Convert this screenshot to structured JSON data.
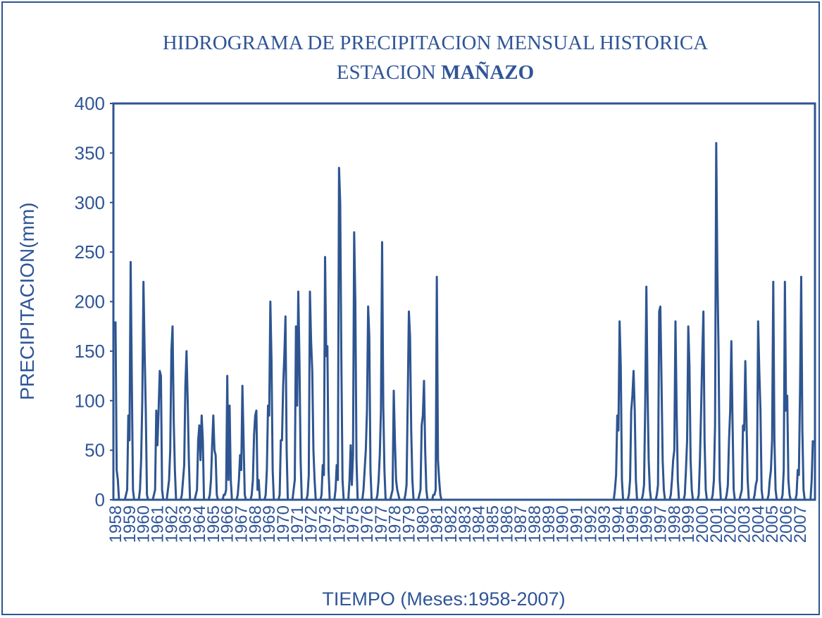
{
  "chart_data": {
    "type": "line",
    "title": "HIDROGRAMA DE PRECIPITACION MENSUAL HISTORICA",
    "subtitle": {
      "text": "ESTACION",
      "emphasis": "MAÑAZO"
    },
    "y_label": "PRECIPITACION(mm)",
    "x_label": "TIEMPO (Meses:1958-2007)",
    "ylim": [
      0,
      400
    ],
    "yticks": [
      0,
      50,
      100,
      150,
      200,
      250,
      300,
      350,
      400
    ],
    "grid": false,
    "color": "#2e5591",
    "categories": [
      "1958",
      null,
      null,
      null,
      null,
      null,
      null,
      null,
      null,
      null,
      null,
      null,
      "1959",
      null,
      null,
      null,
      null,
      null,
      null,
      null,
      null,
      null,
      null,
      null,
      "1960",
      null,
      null,
      null,
      null,
      null,
      null,
      null,
      null,
      null,
      null,
      null,
      "1961",
      null,
      null,
      null,
      null,
      null,
      null,
      null,
      null,
      null,
      null,
      null,
      "1962",
      null,
      null,
      null,
      null,
      null,
      null,
      null,
      null,
      null,
      null,
      null,
      "1963",
      null,
      null,
      null,
      null,
      null,
      null,
      null,
      null,
      null,
      null,
      null,
      "1964",
      null,
      null,
      null,
      null,
      null,
      null,
      null,
      null,
      null,
      null,
      null,
      "1965",
      null,
      null,
      null,
      null,
      null,
      null,
      null,
      null,
      null,
      null,
      null,
      "1966",
      null,
      null,
      null,
      null,
      null,
      null,
      null,
      null,
      null,
      null,
      null,
      "1967",
      null,
      null,
      null,
      null,
      null,
      null,
      null,
      null,
      null,
      null,
      null,
      "1968",
      null,
      null,
      null,
      null,
      null,
      null,
      null,
      null,
      null,
      null,
      null,
      "1969",
      null,
      null,
      null,
      null,
      null,
      null,
      null,
      null,
      null,
      null,
      null,
      "1970",
      null,
      null,
      null,
      null,
      null,
      null,
      null,
      null,
      null,
      null,
      null,
      "1971",
      null,
      null,
      null,
      null,
      null,
      null,
      null,
      null,
      null,
      null,
      null,
      "1972",
      null,
      null,
      null,
      null,
      null,
      null,
      null,
      null,
      null,
      null,
      null,
      "1973",
      null,
      null,
      null,
      null,
      null,
      null,
      null,
      null,
      null,
      null,
      null,
      "1974",
      null,
      null,
      null,
      null,
      null,
      null,
      null,
      null,
      null,
      null,
      null,
      "1975",
      null,
      null,
      null,
      null,
      null,
      null,
      null,
      null,
      null,
      null,
      null,
      "1976",
      null,
      null,
      null,
      null,
      null,
      null,
      null,
      null,
      null,
      null,
      null,
      "1977",
      null,
      null,
      null,
      null,
      null,
      null,
      null,
      null,
      null,
      null,
      null,
      "1978",
      null,
      null,
      null,
      null,
      null,
      null,
      null,
      null,
      null,
      null,
      null,
      "1979",
      null,
      null,
      null,
      null,
      null,
      null,
      null,
      null,
      null,
      null,
      null,
      "1980",
      null,
      null,
      null,
      null,
      null,
      null,
      null,
      null,
      null,
      null,
      null,
      "1981",
      null,
      null,
      null,
      null,
      null,
      null,
      null,
      null,
      null,
      null,
      null,
      "1982",
      null,
      null,
      null,
      null,
      null,
      null,
      null,
      null,
      null,
      null,
      null,
      "1983",
      null,
      null,
      null,
      null,
      null,
      null,
      null,
      null,
      null,
      null,
      null,
      "1984",
      null,
      null,
      null,
      null,
      null,
      null,
      null,
      null,
      null,
      null,
      null,
      "1985",
      null,
      null,
      null,
      null,
      null,
      null,
      null,
      null,
      null,
      null,
      null,
      "1986",
      null,
      null,
      null,
      null,
      null,
      null,
      null,
      null,
      null,
      null,
      null,
      "1987",
      null,
      null,
      null,
      null,
      null,
      null,
      null,
      null,
      null,
      null,
      null,
      "1988",
      null,
      null,
      null,
      null,
      null,
      null,
      null,
      null,
      null,
      null,
      null,
      "1989",
      null,
      null,
      null,
      null,
      null,
      null,
      null,
      null,
      null,
      null,
      null,
      "1990",
      null,
      null,
      null,
      null,
      null,
      null,
      null,
      null,
      null,
      null,
      null,
      "1991",
      null,
      null,
      null,
      null,
      null,
      null,
      null,
      null,
      null,
      null,
      null,
      "1992",
      null,
      null,
      null,
      null,
      null,
      null,
      null,
      null,
      null,
      null,
      null,
      "1993",
      null,
      null,
      null,
      null,
      null,
      null,
      null,
      null,
      null,
      null,
      null,
      "1994",
      null,
      null,
      null,
      null,
      null,
      null,
      null,
      null,
      null,
      null,
      null,
      "1995",
      null,
      null,
      null,
      null,
      null,
      null,
      null,
      null,
      null,
      null,
      null,
      "1996",
      null,
      null,
      null,
      null,
      null,
      null,
      null,
      null,
      null,
      null,
      null,
      "1997",
      null,
      null,
      null,
      null,
      null,
      null,
      null,
      null,
      null,
      null,
      null,
      "1998",
      null,
      null,
      null,
      null,
      null,
      null,
      null,
      null,
      null,
      null,
      null,
      "1999",
      null,
      null,
      null,
      null,
      null,
      null,
      null,
      null,
      null,
      null,
      null,
      "2000",
      null,
      null,
      null,
      null,
      null,
      null,
      null,
      null,
      null,
      null,
      null,
      "2001",
      null,
      null,
      null,
      null,
      null,
      null,
      null,
      null,
      null,
      null,
      null,
      "2002",
      null,
      null,
      null,
      null,
      null,
      null,
      null,
      null,
      null,
      null,
      null,
      "2003",
      null,
      null,
      null,
      null,
      null,
      null,
      null,
      null,
      null,
      null,
      null,
      "2004",
      null,
      null,
      null,
      null,
      null,
      null,
      null,
      null,
      null,
      null,
      null,
      "2005",
      null,
      null,
      null,
      null,
      null,
      null,
      null,
      null,
      null,
      null,
      null,
      "2006",
      null,
      null,
      null,
      null,
      null,
      null,
      null,
      null,
      null,
      null,
      null,
      "2007",
      null,
      null,
      null,
      null,
      null,
      null,
      null,
      null,
      null,
      null,
      null
    ],
    "values": [
      180,
      30,
      20,
      0,
      0,
      0,
      0,
      0,
      0,
      5,
      10,
      85,
      60,
      240,
      120,
      10,
      0,
      0,
      0,
      0,
      0,
      10,
      40,
      100,
      220,
      150,
      90,
      5,
      0,
      0,
      0,
      0,
      0,
      5,
      10,
      90,
      55,
      90,
      130,
      125,
      10,
      0,
      0,
      0,
      0,
      10,
      20,
      50,
      150,
      175,
      80,
      30,
      0,
      0,
      0,
      0,
      0,
      5,
      20,
      35,
      115,
      150,
      100,
      40,
      0,
      0,
      0,
      0,
      0,
      5,
      10,
      60,
      75,
      40,
      85,
      60,
      0,
      0,
      0,
      0,
      0,
      5,
      20,
      55,
      85,
      50,
      45,
      5,
      0,
      0,
      0,
      0,
      0,
      5,
      5,
      10,
      125,
      20,
      95,
      20,
      0,
      0,
      0,
      0,
      0,
      5,
      20,
      45,
      30,
      115,
      60,
      5,
      0,
      0,
      0,
      0,
      0,
      5,
      20,
      65,
      85,
      90,
      10,
      20,
      0,
      0,
      0,
      0,
      0,
      5,
      30,
      95,
      85,
      200,
      140,
      30,
      0,
      0,
      0,
      0,
      0,
      5,
      60,
      60,
      115,
      145,
      185,
      50,
      0,
      0,
      0,
      0,
      0,
      10,
      20,
      175,
      95,
      210,
      140,
      40,
      0,
      0,
      0,
      0,
      0,
      5,
      25,
      210,
      160,
      130,
      50,
      20,
      0,
      0,
      0,
      0,
      0,
      5,
      35,
      25,
      245,
      145,
      155,
      30,
      0,
      0,
      0,
      0,
      0,
      10,
      35,
      20,
      335,
      300,
      140,
      20,
      0,
      0,
      0,
      0,
      0,
      20,
      55,
      15,
      45,
      270,
      200,
      40,
      0,
      0,
      0,
      0,
      0,
      10,
      30,
      50,
      90,
      195,
      165,
      30,
      0,
      0,
      0,
      0,
      0,
      5,
      20,
      45,
      90,
      260,
      95,
      30,
      0,
      0,
      0,
      0,
      0,
      5,
      10,
      110,
      60,
      20,
      10,
      5,
      0,
      0,
      0,
      0,
      0,
      5,
      15,
      100,
      190,
      165,
      70,
      20,
      0,
      0,
      0,
      0,
      0,
      5,
      10,
      75,
      85,
      120,
      50,
      10,
      0,
      0,
      0,
      0,
      0,
      5,
      5,
      10,
      225,
      40,
      20,
      5,
      0,
      0,
      0,
      0,
      0,
      0,
      0,
      0,
      0,
      0,
      0,
      0,
      0,
      0,
      0,
      0,
      0,
      0,
      0,
      0,
      0,
      0,
      0,
      0,
      0,
      0,
      0,
      0,
      0,
      0,
      0,
      0,
      0,
      0,
      0,
      0,
      0,
      0,
      0,
      0,
      0,
      0,
      0,
      0,
      0,
      0,
      0,
      0,
      0,
      0,
      0,
      0,
      0,
      0,
      0,
      0,
      0,
      0,
      0,
      0,
      0,
      0,
      0,
      0,
      0,
      0,
      0,
      0,
      0,
      0,
      0,
      0,
      0,
      0,
      0,
      0,
      0,
      0,
      0,
      0,
      0,
      0,
      0,
      0,
      0,
      0,
      0,
      0,
      0,
      0,
      0,
      0,
      0,
      0,
      0,
      0,
      0,
      0,
      0,
      0,
      0,
      0,
      0,
      0,
      0,
      0,
      0,
      0,
      0,
      0,
      0,
      0,
      0,
      0,
      0,
      0,
      0,
      0,
      0,
      0,
      0,
      0,
      0,
      0,
      0,
      0,
      0,
      0,
      0,
      0,
      0,
      0,
      0,
      0,
      0,
      0,
      0,
      0,
      0,
      0,
      0,
      0,
      0,
      0,
      0,
      0,
      0,
      0,
      0,
      10,
      25,
      85,
      70,
      180,
      135,
      20,
      0,
      0,
      0,
      0,
      0,
      5,
      20,
      90,
      105,
      130,
      90,
      20,
      0,
      0,
      0,
      0,
      0,
      5,
      15,
      95,
      215,
      110,
      40,
      10,
      0,
      0,
      0,
      0,
      0,
      5,
      15,
      190,
      195,
      120,
      40,
      10,
      0,
      0,
      0,
      0,
      0,
      5,
      20,
      40,
      50,
      180,
      90,
      20,
      0,
      0,
      0,
      0,
      0,
      5,
      30,
      60,
      175,
      135,
      40,
      10,
      0,
      0,
      0,
      0,
      0,
      5,
      40,
      90,
      145,
      190,
      60,
      10,
      0,
      0,
      0,
      0,
      0,
      5,
      20,
      75,
      360,
      230,
      150,
      20,
      0,
      0,
      0,
      0,
      0,
      5,
      15,
      60,
      90,
      160,
      80,
      10,
      0,
      0,
      0,
      0,
      0,
      5,
      10,
      75,
      70,
      140,
      80,
      20,
      0,
      0,
      0,
      0,
      0,
      5,
      15,
      20,
      180,
      130,
      90,
      10,
      0,
      0,
      0,
      0,
      0,
      5,
      20,
      30,
      60,
      220,
      60,
      10,
      0,
      0,
      0,
      0,
      0,
      5,
      30,
      220,
      90,
      105,
      20,
      5,
      0,
      0,
      0,
      0,
      0,
      5,
      30,
      25,
      110,
      225,
      70,
      10,
      0,
      0,
      0,
      0,
      0,
      0,
      20,
      60
    ]
  }
}
